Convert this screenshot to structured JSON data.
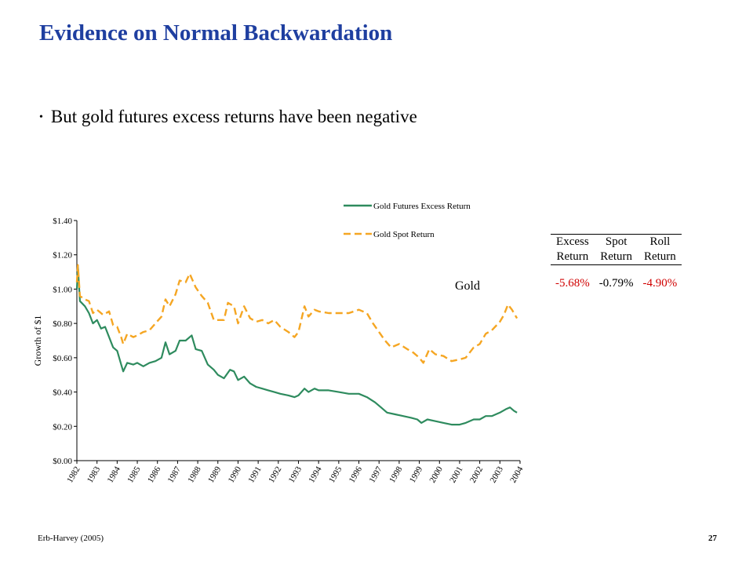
{
  "slide": {
    "title": "Evidence on Normal Backwardation",
    "bullet": "But gold futures excess returns have been negative",
    "footer_source": "Erb-Harvey (2005)",
    "page_number": "27",
    "asset_label": "Gold"
  },
  "stats_table": {
    "headers_row1": [
      "Excess",
      "Spot",
      "Roll"
    ],
    "headers_row2": [
      "Return",
      "Return",
      "Return"
    ],
    "values": [
      "-5.68%",
      "-0.79%",
      "-4.90%"
    ],
    "negative_color": "#d00000"
  },
  "chart_data": {
    "type": "line",
    "title": "",
    "xlabel": "",
    "ylabel": "Growth of $1",
    "xlim": [
      1982,
      2004
    ],
    "ylim": [
      0,
      1.4
    ],
    "y_ticks": [
      "$0.00",
      "$0.20",
      "$0.40",
      "$0.60",
      "$0.80",
      "$1.00",
      "$1.20",
      "$1.40"
    ],
    "x_ticks": [
      "1982",
      "1983",
      "1984",
      "1985",
      "1986",
      "1987",
      "1988",
      "1989",
      "1990",
      "1991",
      "1992",
      "1993",
      "1994",
      "1995",
      "1996",
      "1997",
      "1998",
      "1999",
      "2000",
      "2001",
      "2002",
      "2003",
      "2004"
    ],
    "legend_position": "top-right",
    "series": [
      {
        "name": "Gold Futures Excess Return",
        "color": "#2e8b5e",
        "style": "solid",
        "points": [
          [
            1982.0,
            1.0
          ],
          [
            1982.05,
            1.13
          ],
          [
            1982.15,
            0.93
          ],
          [
            1982.4,
            0.9
          ],
          [
            1982.6,
            0.86
          ],
          [
            1982.8,
            0.8
          ],
          [
            1983.0,
            0.82
          ],
          [
            1983.2,
            0.77
          ],
          [
            1983.4,
            0.78
          ],
          [
            1983.6,
            0.72
          ],
          [
            1983.8,
            0.66
          ],
          [
            1984.0,
            0.64
          ],
          [
            1984.2,
            0.56
          ],
          [
            1984.3,
            0.52
          ],
          [
            1984.5,
            0.57
          ],
          [
            1984.8,
            0.56
          ],
          [
            1985.0,
            0.57
          ],
          [
            1985.3,
            0.55
          ],
          [
            1985.6,
            0.57
          ],
          [
            1985.9,
            0.58
          ],
          [
            1986.2,
            0.6
          ],
          [
            1986.4,
            0.69
          ],
          [
            1986.6,
            0.62
          ],
          [
            1986.9,
            0.64
          ],
          [
            1987.1,
            0.7
          ],
          [
            1987.4,
            0.7
          ],
          [
            1987.7,
            0.73
          ],
          [
            1987.9,
            0.65
          ],
          [
            1988.2,
            0.64
          ],
          [
            1988.5,
            0.56
          ],
          [
            1988.8,
            0.53
          ],
          [
            1989.0,
            0.5
          ],
          [
            1989.3,
            0.48
          ],
          [
            1989.6,
            0.53
          ],
          [
            1989.8,
            0.52
          ],
          [
            1990.0,
            0.47
          ],
          [
            1990.3,
            0.49
          ],
          [
            1990.6,
            0.45
          ],
          [
            1990.9,
            0.43
          ],
          [
            1991.2,
            0.42
          ],
          [
            1991.5,
            0.41
          ],
          [
            1991.8,
            0.4
          ],
          [
            1992.1,
            0.39
          ],
          [
            1992.5,
            0.38
          ],
          [
            1992.8,
            0.37
          ],
          [
            1993.0,
            0.38
          ],
          [
            1993.3,
            0.42
          ],
          [
            1993.5,
            0.4
          ],
          [
            1993.8,
            0.42
          ],
          [
            1994.0,
            0.41
          ],
          [
            1994.5,
            0.41
          ],
          [
            1995.0,
            0.4
          ],
          [
            1995.5,
            0.39
          ],
          [
            1996.0,
            0.39
          ],
          [
            1996.4,
            0.37
          ],
          [
            1996.8,
            0.34
          ],
          [
            1997.1,
            0.31
          ],
          [
            1997.4,
            0.28
          ],
          [
            1997.8,
            0.27
          ],
          [
            1998.2,
            0.26
          ],
          [
            1998.6,
            0.25
          ],
          [
            1998.9,
            0.24
          ],
          [
            1999.1,
            0.22
          ],
          [
            1999.4,
            0.24
          ],
          [
            1999.8,
            0.23
          ],
          [
            2000.2,
            0.22
          ],
          [
            2000.6,
            0.21
          ],
          [
            2001.0,
            0.21
          ],
          [
            2001.3,
            0.22
          ],
          [
            2001.7,
            0.24
          ],
          [
            2002.0,
            0.24
          ],
          [
            2002.3,
            0.26
          ],
          [
            2002.6,
            0.26
          ],
          [
            2003.0,
            0.28
          ],
          [
            2003.3,
            0.3
          ],
          [
            2003.5,
            0.31
          ],
          [
            2003.7,
            0.29
          ],
          [
            2003.85,
            0.28
          ]
        ]
      },
      {
        "name": "Gold Spot Return",
        "color": "#f5a623",
        "style": "dashed",
        "points": [
          [
            1982.0,
            1.04
          ],
          [
            1982.05,
            1.14
          ],
          [
            1982.15,
            0.96
          ],
          [
            1982.4,
            0.94
          ],
          [
            1982.6,
            0.93
          ],
          [
            1982.8,
            0.86
          ],
          [
            1983.0,
            0.88
          ],
          [
            1983.3,
            0.85
          ],
          [
            1983.6,
            0.87
          ],
          [
            1983.8,
            0.79
          ],
          [
            1984.0,
            0.78
          ],
          [
            1984.2,
            0.72
          ],
          [
            1984.3,
            0.68
          ],
          [
            1984.5,
            0.74
          ],
          [
            1984.8,
            0.72
          ],
          [
            1985.0,
            0.73
          ],
          [
            1985.3,
            0.75
          ],
          [
            1985.6,
            0.76
          ],
          [
            1985.9,
            0.8
          ],
          [
            1986.2,
            0.84
          ],
          [
            1986.4,
            0.94
          ],
          [
            1986.6,
            0.9
          ],
          [
            1986.9,
            0.97
          ],
          [
            1987.1,
            1.05
          ],
          [
            1987.4,
            1.04
          ],
          [
            1987.6,
            1.09
          ],
          [
            1987.9,
            1.01
          ],
          [
            1988.2,
            0.96
          ],
          [
            1988.5,
            0.92
          ],
          [
            1988.8,
            0.82
          ],
          [
            1989.0,
            0.82
          ],
          [
            1989.3,
            0.82
          ],
          [
            1989.5,
            0.92
          ],
          [
            1989.8,
            0.9
          ],
          [
            1990.0,
            0.8
          ],
          [
            1990.3,
            0.9
          ],
          [
            1990.6,
            0.83
          ],
          [
            1990.9,
            0.81
          ],
          [
            1991.2,
            0.82
          ],
          [
            1991.5,
            0.8
          ],
          [
            1991.8,
            0.82
          ],
          [
            1992.1,
            0.78
          ],
          [
            1992.5,
            0.75
          ],
          [
            1992.8,
            0.72
          ],
          [
            1993.0,
            0.75
          ],
          [
            1993.3,
            0.9
          ],
          [
            1993.5,
            0.84
          ],
          [
            1993.8,
            0.88
          ],
          [
            1994.0,
            0.87
          ],
          [
            1994.5,
            0.86
          ],
          [
            1995.0,
            0.86
          ],
          [
            1995.5,
            0.86
          ],
          [
            1996.0,
            0.88
          ],
          [
            1996.4,
            0.86
          ],
          [
            1996.7,
            0.8
          ],
          [
            1997.0,
            0.75
          ],
          [
            1997.3,
            0.7
          ],
          [
            1997.6,
            0.66
          ],
          [
            1998.0,
            0.68
          ],
          [
            1998.4,
            0.65
          ],
          [
            1998.7,
            0.63
          ],
          [
            1999.0,
            0.6
          ],
          [
            1999.2,
            0.57
          ],
          [
            1999.5,
            0.65
          ],
          [
            1999.8,
            0.62
          ],
          [
            2000.2,
            0.61
          ],
          [
            2000.6,
            0.58
          ],
          [
            2001.0,
            0.59
          ],
          [
            2001.3,
            0.6
          ],
          [
            2001.7,
            0.66
          ],
          [
            2002.0,
            0.68
          ],
          [
            2002.3,
            0.74
          ],
          [
            2002.6,
            0.76
          ],
          [
            2003.0,
            0.81
          ],
          [
            2003.2,
            0.85
          ],
          [
            2003.4,
            0.91
          ],
          [
            2003.6,
            0.88
          ],
          [
            2003.85,
            0.83
          ]
        ]
      }
    ]
  }
}
